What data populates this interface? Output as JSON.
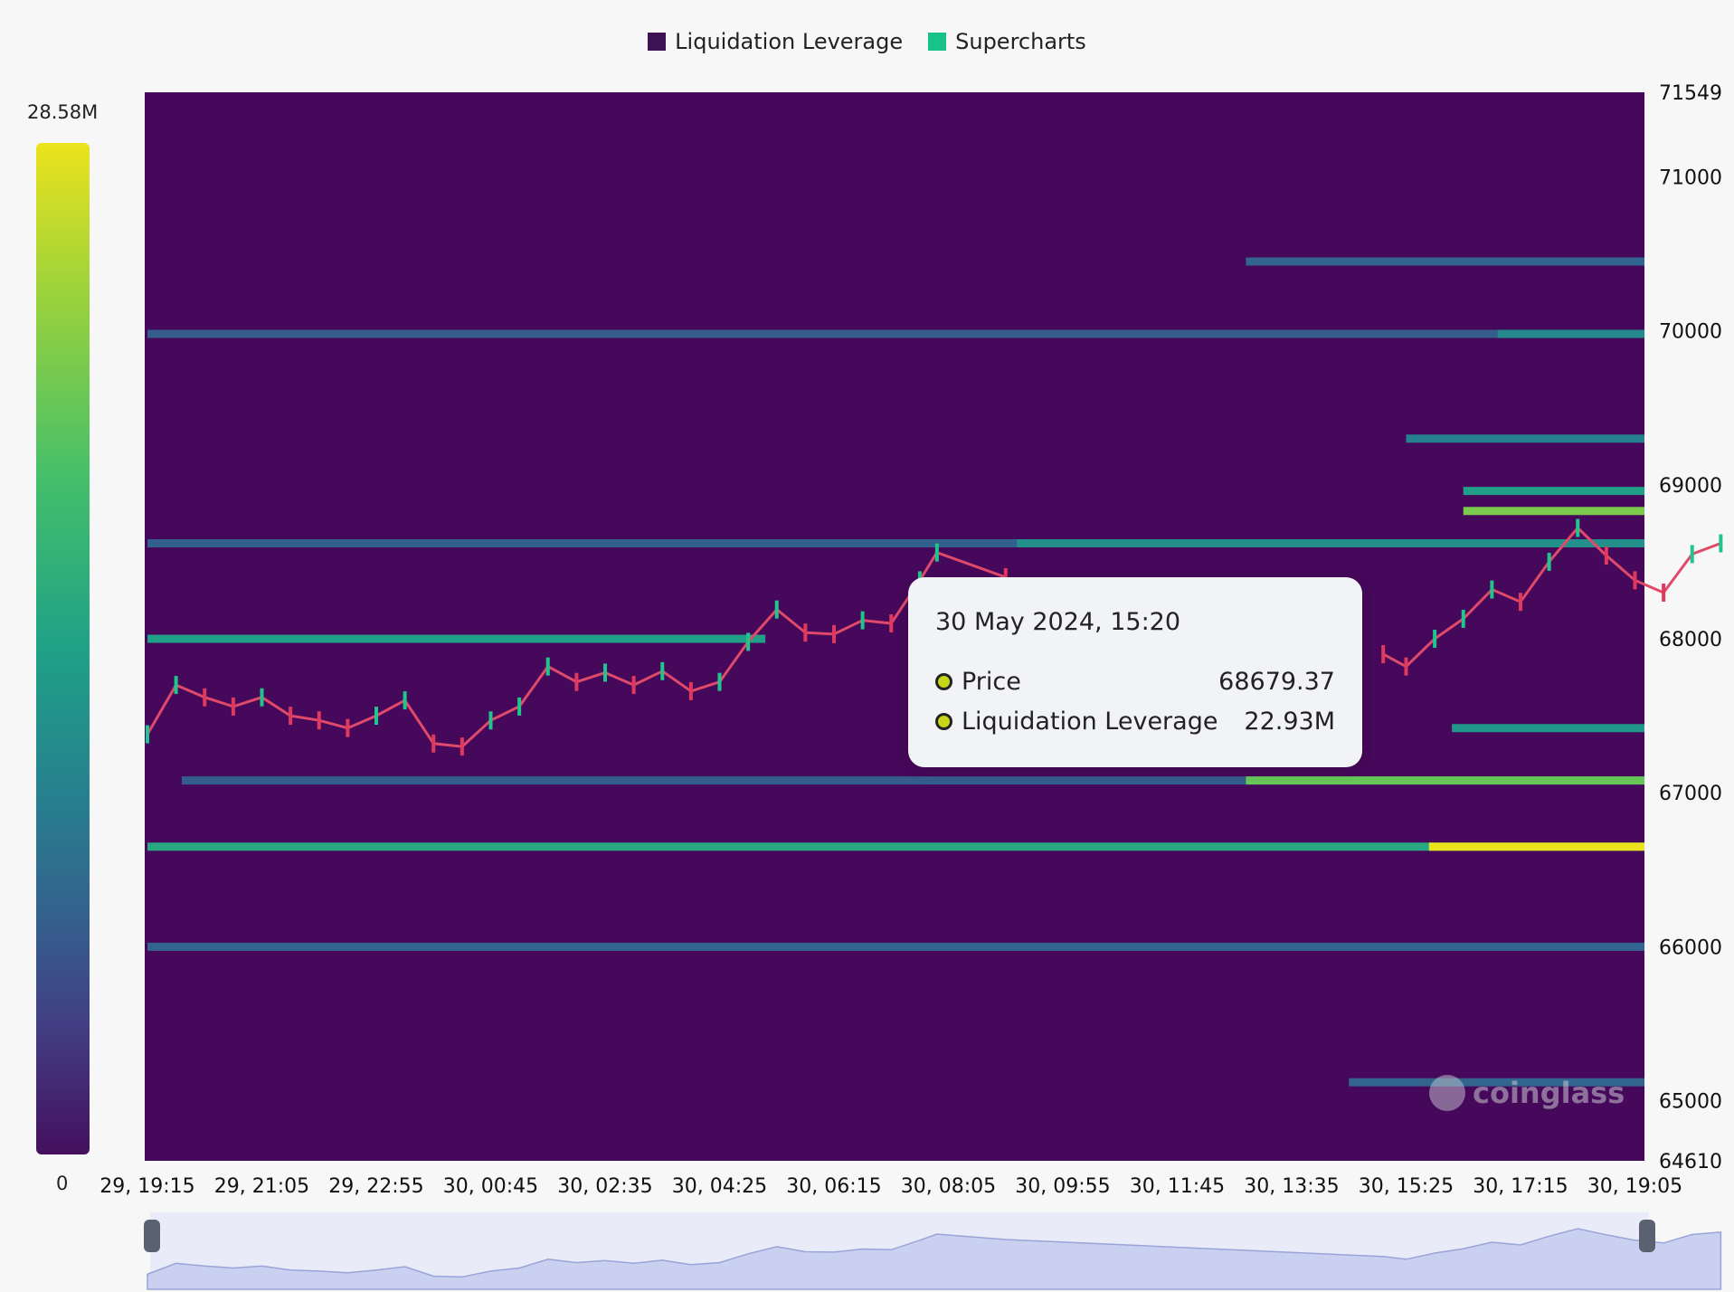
{
  "legend": [
    {
      "label": "Liquidation Leverage",
      "color": "#3d1254"
    },
    {
      "label": "Supercharts",
      "color": "#17c389"
    }
  ],
  "colorbar": {
    "max_label": "28.58M",
    "min_label": "0",
    "max_value": 28580000,
    "min_value": 0
  },
  "tooltip": {
    "date": "30 May 2024, 15:20",
    "rows": [
      {
        "label": "Price",
        "value": "68679.37"
      },
      {
        "label": "Liquidation Leverage",
        "value": "22.93M"
      }
    ]
  },
  "watermark": "coinglass",
  "chart_data": {
    "type": "heatmap",
    "y_axis": {
      "min": 64610,
      "max": 71549,
      "ticks": [
        "71549",
        "71000",
        "70000",
        "69000",
        "68000",
        "67000",
        "66000",
        "65000",
        "64610"
      ]
    },
    "x_axis": {
      "ticks": [
        "29, 19:15",
        "29, 21:05",
        "29, 22:55",
        "30, 00:45",
        "30, 02:35",
        "30, 04:25",
        "30, 06:15",
        "30, 08:05",
        "30, 09:55",
        "30, 11:45",
        "30, 13:35",
        "30, 15:25",
        "30, 17:15",
        "30, 19:05"
      ]
    },
    "heat_bands": [
      {
        "price": 66650,
        "from_tick": 0,
        "value": 18.0,
        "peak_from_tick": 11.2,
        "peak_value": 28.5
      },
      {
        "price": 67080,
        "from_tick": 0.3,
        "value": 8.0,
        "peak_from_tick": 9.6,
        "peak_value": 22.0
      },
      {
        "price": 68000,
        "from_tick": 0,
        "value": 17.0,
        "to_tick": 5.4
      },
      {
        "price": 68620,
        "from_tick": 0,
        "value": 8.5,
        "peak_from_tick": 7.6,
        "peak_value": 15.0
      },
      {
        "price": 68830,
        "from_tick": 11.5,
        "value": 22.93
      },
      {
        "price": 68960,
        "from_tick": 11.5,
        "value": 17.0
      },
      {
        "price": 69980,
        "from_tick": 0,
        "value": 8.0,
        "peak_from_tick": 11.8,
        "peak_value": 14.0
      },
      {
        "price": 66000,
        "from_tick": 0,
        "value": 9.0
      },
      {
        "price": 67420,
        "from_tick": 11.4,
        "value": 16.0
      },
      {
        "price": 69300,
        "from_tick": 11.0,
        "value": 13.0
      },
      {
        "price": 70450,
        "from_tick": 9.6,
        "value": 9.0
      },
      {
        "price": 65120,
        "from_tick": 10.5,
        "value": 9.0
      }
    ],
    "price_series": {
      "name": "Price",
      "x": [
        0,
        0.25,
        0.5,
        0.75,
        1.0,
        1.25,
        1.5,
        1.75,
        2.0,
        2.25,
        2.5,
        2.75,
        3.0,
        3.25,
        3.5,
        3.75,
        4.0,
        4.25,
        4.5,
        4.75,
        5.0,
        5.25,
        5.5,
        5.75,
        6.0,
        6.25,
        6.5,
        6.75,
        6.9,
        7.5,
        10.8,
        11.0,
        11.25,
        11.5,
        11.75,
        12.0,
        12.25,
        12.5,
        12.75,
        13.0,
        13.25,
        13.5,
        13.75
      ],
      "y": [
        67380,
        67700,
        67620,
        67560,
        67620,
        67500,
        67470,
        67420,
        67500,
        67600,
        67320,
        67300,
        67470,
        67560,
        67820,
        67720,
        67780,
        67700,
        67790,
        67660,
        67720,
        67980,
        68190,
        68040,
        68030,
        68120,
        68100,
        68380,
        68560,
        68400,
        67900,
        67820,
        68000,
        68130,
        68320,
        68240,
        68500,
        68720,
        68540,
        68380,
        68300,
        68550,
        68620
      ]
    }
  }
}
